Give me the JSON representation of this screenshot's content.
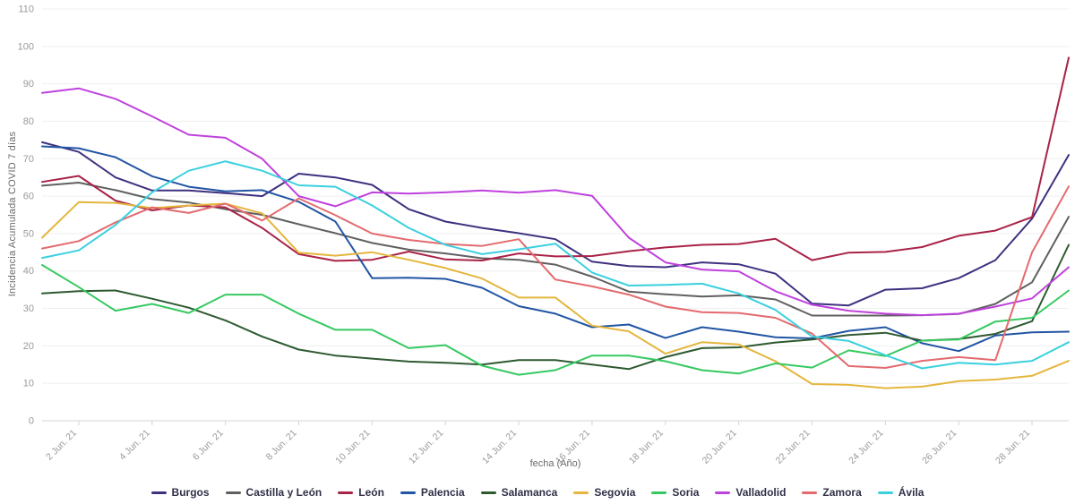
{
  "chart_data": {
    "type": "line",
    "title": "",
    "xlabel": "fecha (Año)",
    "ylabel": "Incidencia Acumulada COVID 7 días",
    "ylim": [
      0,
      110
    ],
    "y_ticks": [
      0,
      10,
      20,
      30,
      40,
      50,
      60,
      70,
      80,
      90,
      100,
      110
    ],
    "grid": "horizontal-only",
    "legend_position": "bottom",
    "x_labels_shown_every": 2,
    "x": [
      "1 Jun. 21",
      "2 Jun. 21",
      "3 Jun. 21",
      "4 Jun. 21",
      "5 Jun. 21",
      "6 Jun. 21",
      "7 Jun. 21",
      "8 Jun. 21",
      "9 Jun. 21",
      "10 Jun. 21",
      "11 Jun. 21",
      "12 Jun. 21",
      "13 Jun. 21",
      "14 Jun. 21",
      "15 Jun. 21",
      "16 Jun. 21",
      "17 Jun. 21",
      "18 Jun. 21",
      "19 Jun. 21",
      "20 Jun. 21",
      "21 Jun. 21",
      "22 Jun. 21",
      "23 Jun. 21",
      "24 Jun. 21",
      "25 Jun. 21",
      "26 Jun. 21",
      "27 Jun. 21",
      "28 Jun. 21",
      "29 Jun. 21"
    ],
    "series": [
      {
        "name": "Burgos",
        "color": "#3f3180",
        "values": [
          74.4,
          71.8,
          65.0,
          61.5,
          61.5,
          60.8,
          60.0,
          66.0,
          65.0,
          63.0,
          56.5,
          53.2,
          51.5,
          50.1,
          48.5,
          42.5,
          41.3,
          41.0,
          42.3,
          41.8,
          39.3,
          31.3,
          30.8,
          35.0,
          35.4,
          38.1,
          42.9,
          54.0,
          71.0
        ]
      },
      {
        "name": "Castilla y León",
        "color": "#606060",
        "values": [
          62.8,
          63.6,
          61.6,
          59.2,
          58.3,
          56.5,
          55.0,
          52.5,
          50.1,
          47.5,
          45.7,
          44.7,
          43.4,
          43.0,
          41.7,
          38.5,
          34.5,
          33.8,
          33.2,
          33.5,
          32.4,
          28.1,
          28.1,
          28.1,
          28.2,
          28.5,
          31.2,
          37.0,
          54.5
        ]
      },
      {
        "name": "León",
        "color": "#a92347",
        "values": [
          63.8,
          65.4,
          58.8,
          56.2,
          57.5,
          57.0,
          51.5,
          44.5,
          42.7,
          43.0,
          45.2,
          43.1,
          42.8,
          44.7,
          43.9,
          44.0,
          45.3,
          46.3,
          47.0,
          47.2,
          48.6,
          42.9,
          44.9,
          45.1,
          46.4,
          49.4,
          50.8,
          54.4,
          97.0
        ]
      },
      {
        "name": "Palencia",
        "color": "#2155a3",
        "values": [
          73.3,
          72.8,
          70.4,
          65.3,
          62.5,
          61.3,
          61.6,
          58.5,
          53.2,
          38.1,
          38.2,
          37.9,
          35.5,
          30.6,
          28.6,
          25.0,
          25.7,
          22.1,
          25.0,
          23.8,
          22.3,
          22.0,
          24.0,
          25.0,
          20.7,
          18.6,
          22.8,
          23.6,
          23.8
        ]
      },
      {
        "name": "Salamanca",
        "color": "#2e5a31",
        "values": [
          34.0,
          34.6,
          34.8,
          32.6,
          30.2,
          26.8,
          22.5,
          19.0,
          17.4,
          16.6,
          15.8,
          15.5,
          15.0,
          16.2,
          16.2,
          15.0,
          13.8,
          17.0,
          19.4,
          19.6,
          20.9,
          21.7,
          22.9,
          23.5,
          21.4,
          21.8,
          23.2,
          26.6,
          47.0
        ]
      },
      {
        "name": "Segovia",
        "color": "#e4b63d",
        "values": [
          48.9,
          58.4,
          58.2,
          56.8,
          57.5,
          58.0,
          55.4,
          44.9,
          44.1,
          45.0,
          43.0,
          40.8,
          38.0,
          32.9,
          32.9,
          25.4,
          23.9,
          17.9,
          21.0,
          20.4,
          15.9,
          9.8,
          9.6,
          8.7,
          9.1,
          10.6,
          11.0,
          12.0,
          16.0
        ]
      },
      {
        "name": "Soria",
        "color": "#36c961",
        "values": [
          41.6,
          35.7,
          29.4,
          31.2,
          28.8,
          33.7,
          33.7,
          28.6,
          24.3,
          24.3,
          19.4,
          20.2,
          14.7,
          12.3,
          13.5,
          17.4,
          17.4,
          15.9,
          13.5,
          12.6,
          15.3,
          14.2,
          18.8,
          17.3,
          21.4,
          21.7,
          26.5,
          27.5,
          34.8
        ]
      },
      {
        "name": "Valladolid",
        "color": "#bf41dd",
        "values": [
          87.6,
          88.8,
          86.0,
          81.3,
          76.4,
          75.6,
          70.0,
          60.0,
          57.3,
          61.0,
          60.7,
          61.0,
          61.5,
          60.9,
          61.6,
          60.1,
          48.9,
          42.3,
          40.4,
          39.9,
          34.6,
          31.0,
          29.4,
          28.6,
          28.2,
          28.6,
          30.5,
          32.7,
          41.0
        ]
      },
      {
        "name": "Zamora",
        "color": "#e36a6e",
        "values": [
          46.0,
          48.0,
          53.0,
          57.0,
          55.5,
          58.0,
          53.5,
          59.4,
          54.9,
          50.0,
          48.3,
          47.2,
          46.7,
          48.5,
          37.7,
          35.9,
          33.7,
          30.5,
          29.0,
          28.8,
          27.5,
          23.3,
          14.6,
          14.1,
          16.0,
          17.0,
          16.2,
          45.0,
          62.6
        ]
      },
      {
        "name": "Ávila",
        "color": "#3bd0df",
        "values": [
          43.5,
          45.5,
          52.3,
          61.0,
          66.8,
          69.3,
          66.8,
          62.9,
          62.5,
          57.5,
          51.5,
          47.0,
          44.5,
          45.8,
          47.3,
          39.6,
          36.1,
          36.3,
          36.6,
          34.0,
          29.6,
          22.5,
          21.3,
          17.5,
          14.0,
          15.5,
          15.0,
          16.0,
          21.0
        ]
      }
    ],
    "style": {
      "grid_color": "#efefef",
      "axis_line_color": "#d4d4d4",
      "tick_text_color": "#999999",
      "axis_title_color": "#6b6b6b",
      "legend_text_color": "#303048",
      "background": "#ffffff"
    }
  }
}
